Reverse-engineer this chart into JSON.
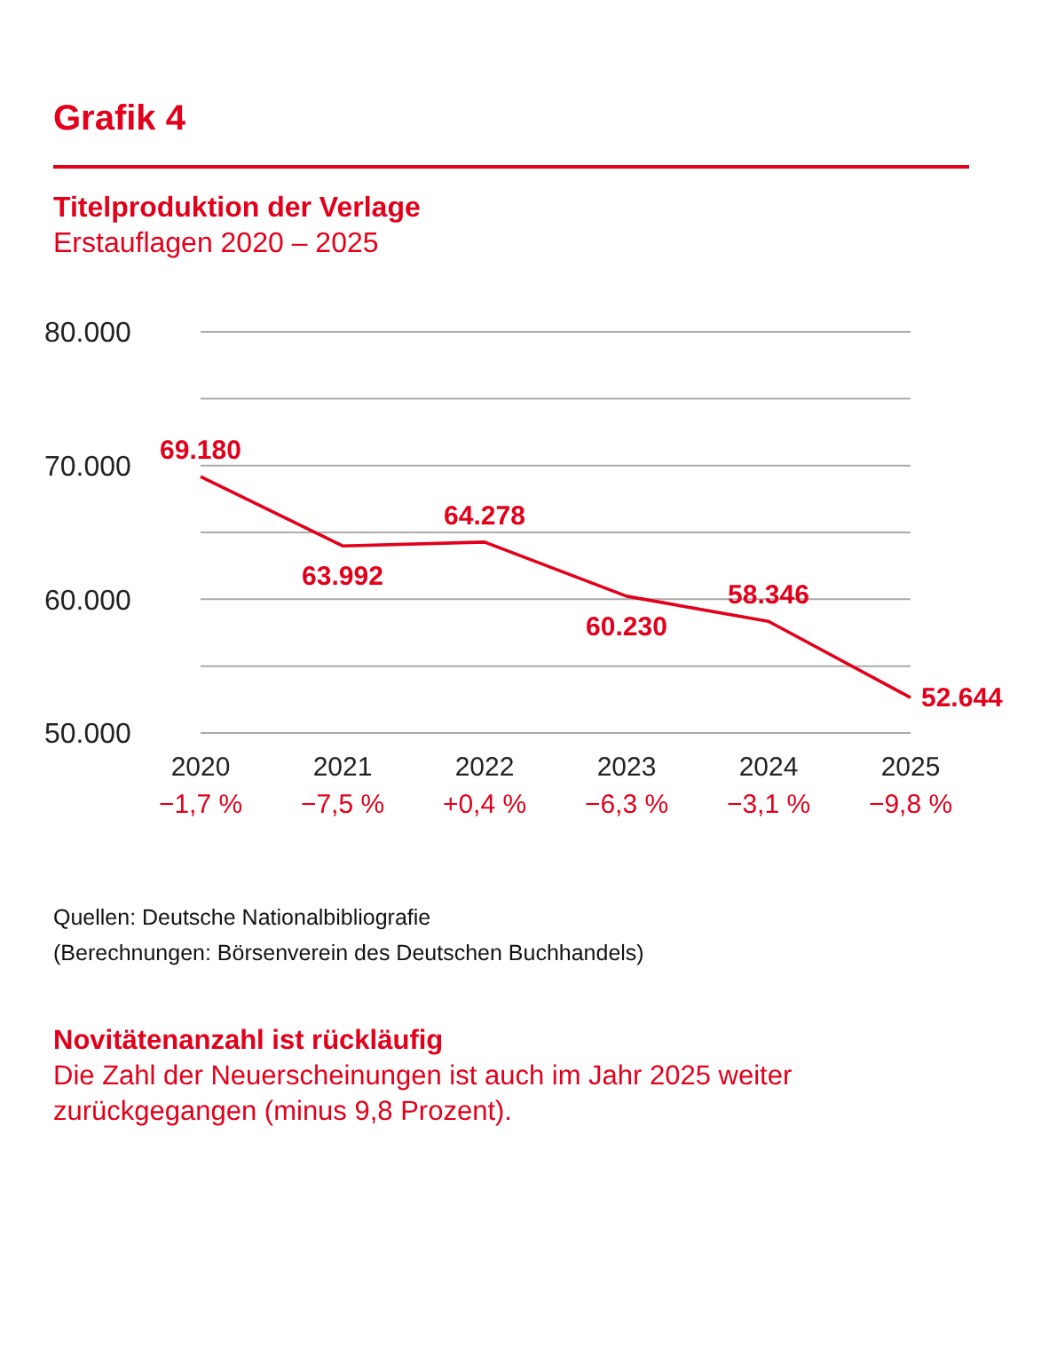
{
  "chart_data": {
    "type": "line",
    "title": "Grafik 4",
    "subtitle": "Titelproduktion der Verlage\nErstauflagen 2020 – 2025",
    "categories": [
      "2020\n−1,7 %",
      "2021\n−7,5 %",
      "2022\n+0,4 %",
      "2023\n−6,3 %",
      "2024\n−3,1 %",
      "2025\n−9,8 %"
    ],
    "series": [
      {
        "color": "#e2001a",
        "values": [
          69180,
          63992,
          64278,
          60230,
          58346,
          52644
        ],
        "value_labels": [
          "69.180",
          "63.992",
          "64.278",
          "60.230",
          "58.346",
          "52.644"
        ]
      }
    ],
    "ylim": [
      50000,
      80000
    ],
    "yticks": [
      {
        "value": 50000,
        "label": "50.000"
      },
      {
        "value": 55000,
        "label": null
      },
      {
        "value": 60000,
        "label": "60.000"
      },
      {
        "value": 65000,
        "label": null
      },
      {
        "value": 70000,
        "label": "70.000"
      },
      {
        "value": 75000,
        "label": null
      },
      {
        "value": 80000,
        "label": "80.000"
      }
    ],
    "grid": "y",
    "marker": "none",
    "line_style": "solid",
    "annotations": [
      "Quellen: Deutsche Nationalbibliografie",
      "(Berechnungen: Börsenverein des Deutschen Buchhandels)",
      "Novitätenanzahl ist rückläufig",
      "Die Zahl der Neuerscheinungen ist auch im Jahr 2025 weiter zurückgegangen (minus 9,8 Prozent)."
    ]
  }
}
